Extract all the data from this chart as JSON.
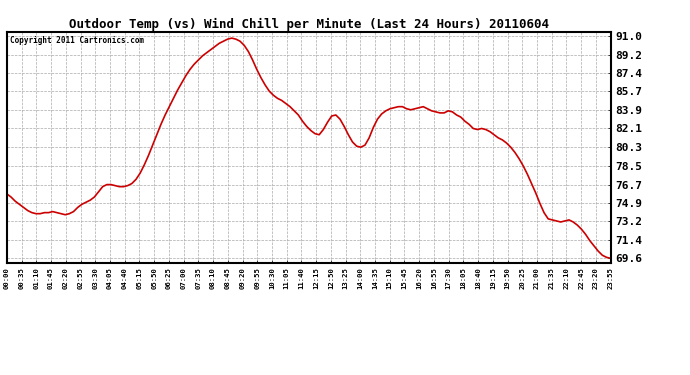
{
  "title": "Outdoor Temp (vs) Wind Chill per Minute (Last 24 Hours) 20110604",
  "copyright_text": "Copyright 2011 Cartronics.com",
  "line_color": "#cc0000",
  "background_color": "#ffffff",
  "grid_color": "#aaaaaa",
  "yticks": [
    69.6,
    71.4,
    73.2,
    74.9,
    76.7,
    78.5,
    80.3,
    82.1,
    83.9,
    85.7,
    87.4,
    89.2,
    91.0
  ],
  "ylim": [
    69.2,
    91.4
  ],
  "xtick_labels": [
    "00:00",
    "00:35",
    "01:10",
    "01:45",
    "02:20",
    "02:55",
    "03:30",
    "04:05",
    "04:40",
    "05:15",
    "05:50",
    "06:25",
    "07:00",
    "07:35",
    "08:10",
    "08:45",
    "09:20",
    "09:55",
    "10:30",
    "11:05",
    "11:40",
    "12:15",
    "12:50",
    "13:25",
    "14:00",
    "14:35",
    "15:10",
    "15:45",
    "16:20",
    "16:55",
    "17:30",
    "18:05",
    "18:40",
    "19:15",
    "19:50",
    "20:25",
    "21:00",
    "21:35",
    "22:10",
    "22:45",
    "23:20",
    "23:55"
  ],
  "data_points": [
    75.8,
    75.5,
    75.1,
    74.8,
    74.5,
    74.2,
    74.0,
    73.9,
    73.9,
    74.0,
    74.0,
    74.1,
    74.0,
    73.9,
    73.8,
    73.9,
    74.1,
    74.5,
    74.8,
    75.0,
    75.2,
    75.5,
    76.0,
    76.5,
    76.7,
    76.7,
    76.6,
    76.5,
    76.5,
    76.6,
    76.8,
    77.2,
    77.8,
    78.6,
    79.5,
    80.5,
    81.5,
    82.5,
    83.4,
    84.2,
    85.0,
    85.8,
    86.5,
    87.2,
    87.8,
    88.3,
    88.7,
    89.1,
    89.4,
    89.7,
    90.0,
    90.3,
    90.5,
    90.7,
    90.8,
    90.7,
    90.5,
    90.1,
    89.5,
    88.7,
    87.8,
    87.0,
    86.3,
    85.7,
    85.3,
    85.0,
    84.8,
    84.5,
    84.2,
    83.8,
    83.4,
    82.8,
    82.3,
    81.9,
    81.6,
    81.5,
    82.0,
    82.7,
    83.3,
    83.4,
    83.0,
    82.3,
    81.5,
    80.8,
    80.4,
    80.3,
    80.5,
    81.2,
    82.2,
    83.0,
    83.5,
    83.8,
    84.0,
    84.1,
    84.2,
    84.2,
    84.0,
    83.9,
    84.0,
    84.1,
    84.2,
    84.0,
    83.8,
    83.7,
    83.6,
    83.6,
    83.8,
    83.7,
    83.4,
    83.2,
    82.8,
    82.5,
    82.1,
    82.0,
    82.1,
    82.0,
    81.8,
    81.5,
    81.2,
    81.0,
    80.7,
    80.3,
    79.8,
    79.2,
    78.5,
    77.7,
    76.8,
    75.9,
    74.9,
    74.0,
    73.4,
    73.3,
    73.2,
    73.1,
    73.2,
    73.3,
    73.1,
    72.8,
    72.4,
    71.9,
    71.3,
    70.8,
    70.3,
    69.9,
    69.7,
    69.6
  ]
}
